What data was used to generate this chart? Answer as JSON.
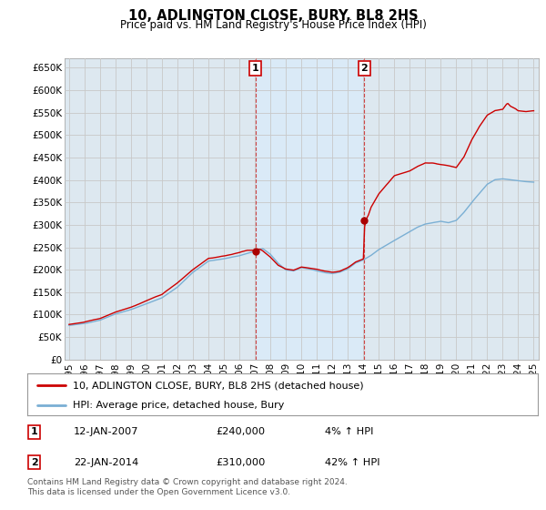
{
  "title": "10, ADLINGTON CLOSE, BURY, BL8 2HS",
  "subtitle": "Price paid vs. HM Land Registry's House Price Index (HPI)",
  "background_color": "#ffffff",
  "plot_bg_color": "#dde8f0",
  "shade_color": "#daeaf7",
  "grid_color": "#c8c8c8",
  "hpi_color": "#7aafd4",
  "price_color": "#cc0000",
  "marker_color": "#aa0000",
  "sale1_year": 2007.04,
  "sale1_price": 240000,
  "sale2_year": 2014.06,
  "sale2_price": 310000,
  "legend_label1": "10, ADLINGTON CLOSE, BURY, BL8 2HS (detached house)",
  "legend_label2": "HPI: Average price, detached house, Bury",
  "footnote": "Contains HM Land Registry data © Crown copyright and database right 2024.\nThis data is licensed under the Open Government Licence v3.0.",
  "table_rows": [
    {
      "num": "1",
      "date": "12-JAN-2007",
      "price": "£240,000",
      "hpi": "4% ↑ HPI"
    },
    {
      "num": "2",
      "date": "22-JAN-2014",
      "price": "£310,000",
      "hpi": "42% ↑ HPI"
    }
  ],
  "ylim": [
    0,
    670000
  ],
  "yticks": [
    0,
    50000,
    100000,
    150000,
    200000,
    250000,
    300000,
    350000,
    400000,
    450000,
    500000,
    550000,
    600000,
    650000
  ],
  "ytick_labels": [
    "£0",
    "£50K",
    "£100K",
    "£150K",
    "£200K",
    "£250K",
    "£300K",
    "£350K",
    "£400K",
    "£450K",
    "£500K",
    "£550K",
    "£600K",
    "£650K"
  ],
  "xlim": [
    1994.7,
    2025.3
  ],
  "xticks": [
    1995,
    1996,
    1997,
    1998,
    1999,
    2000,
    2001,
    2002,
    2003,
    2004,
    2005,
    2006,
    2007,
    2008,
    2009,
    2010,
    2011,
    2012,
    2013,
    2014,
    2015,
    2016,
    2017,
    2018,
    2019,
    2020,
    2021,
    2022,
    2023,
    2024,
    2025
  ]
}
